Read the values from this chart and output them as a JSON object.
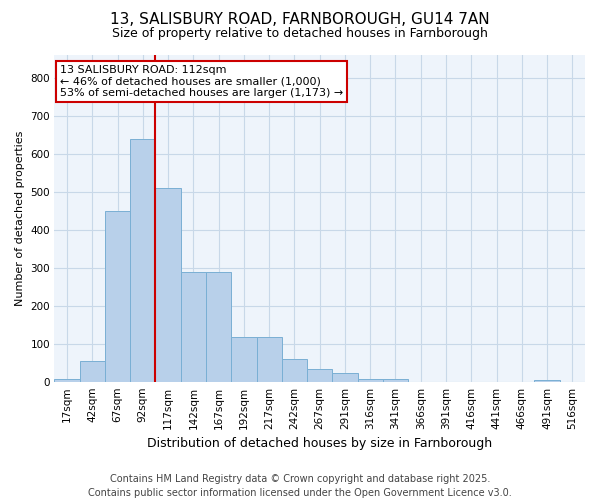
{
  "title_line1": "13, SALISBURY ROAD, FARNBOROUGH, GU14 7AN",
  "title_line2": "Size of property relative to detached houses in Farnborough",
  "xlabel": "Distribution of detached houses by size in Farnborough",
  "ylabel": "Number of detached properties",
  "categories": [
    "17sqm",
    "42sqm",
    "67sqm",
    "92sqm",
    "117sqm",
    "142sqm",
    "167sqm",
    "192sqm",
    "217sqm",
    "242sqm",
    "267sqm",
    "291sqm",
    "316sqm",
    "341sqm",
    "366sqm",
    "391sqm",
    "416sqm",
    "441sqm",
    "466sqm",
    "491sqm",
    "516sqm"
  ],
  "values": [
    10,
    55,
    450,
    640,
    510,
    290,
    290,
    120,
    120,
    62,
    35,
    25,
    8,
    8,
    0,
    0,
    0,
    0,
    0,
    5,
    0
  ],
  "bar_color": "#b8d0ea",
  "bar_edge_color": "#7aafd4",
  "grid_color": "#c8d8e8",
  "plot_bg_color": "#eef4fb",
  "fig_bg_color": "#ffffff",
  "annotation_box_color": "#cc0000",
  "vline_color": "#cc0000",
  "vline_x": 3.5,
  "annotation_text": "13 SALISBURY ROAD: 112sqm\n← 46% of detached houses are smaller (1,000)\n53% of semi-detached houses are larger (1,173) →",
  "footer_line1": "Contains HM Land Registry data © Crown copyright and database right 2025.",
  "footer_line2": "Contains public sector information licensed under the Open Government Licence v3.0.",
  "ylim": [
    0,
    860
  ],
  "yticks": [
    0,
    100,
    200,
    300,
    400,
    500,
    600,
    700,
    800
  ],
  "title1_fontsize": 11,
  "title2_fontsize": 9,
  "ylabel_fontsize": 8,
  "xlabel_fontsize": 9,
  "tick_fontsize": 7.5,
  "footer_fontsize": 7,
  "annot_fontsize": 8
}
